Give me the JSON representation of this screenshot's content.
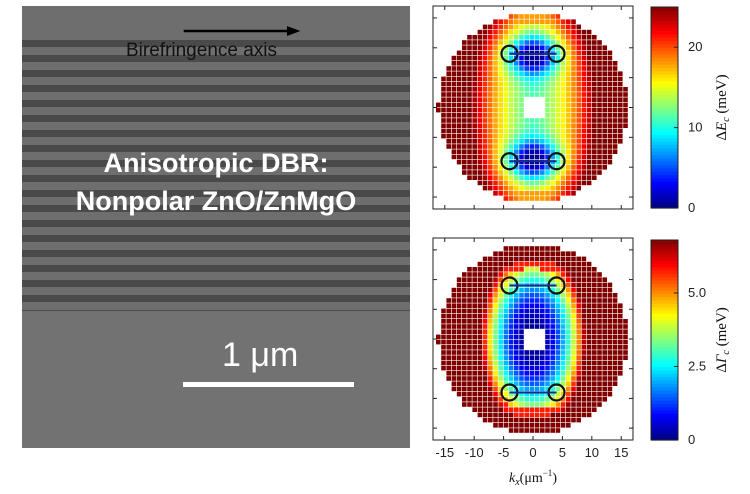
{
  "sem_image": {
    "arrow_label": "Birefringence axis",
    "title_line1": "Anisotropic DBR:",
    "title_line2": "Nonpolar ZnO/ZnMgO",
    "scale_label": "1 μm"
  },
  "chart_data": [
    {
      "type": "heatmap",
      "title": "",
      "quantity": "splitting of exciton energy",
      "colorbar_label": "ΔE_c (meV)",
      "colorbar_ticks": [
        0,
        10,
        20
      ],
      "colorbar_range": [
        0,
        25
      ],
      "colormap": "jet",
      "grid": false,
      "circle_markers_kx_ky": [
        [
          -4,
          9
        ],
        [
          4,
          9
        ],
        [
          -4,
          -9
        ],
        [
          4,
          -9
        ]
      ]
    },
    {
      "type": "heatmap",
      "title": "",
      "quantity": "splitting of linewidth",
      "xlabel": "k_x (μm⁻¹)",
      "x_ticks": [
        -15,
        -10,
        -5,
        0,
        5,
        10,
        15
      ],
      "xlim": [
        -17,
        17
      ],
      "colorbar_label": "ΔΓ_c (meV)",
      "colorbar_ticks": [
        0,
        2.5,
        5.0
      ],
      "colorbar_range": [
        0,
        6.8
      ],
      "colormap": "jet",
      "grid": false,
      "circle_markers_kx_ky": [
        [
          -4,
          9
        ],
        [
          4,
          9
        ],
        [
          -4,
          -9
        ],
        [
          4,
          -9
        ]
      ]
    }
  ]
}
